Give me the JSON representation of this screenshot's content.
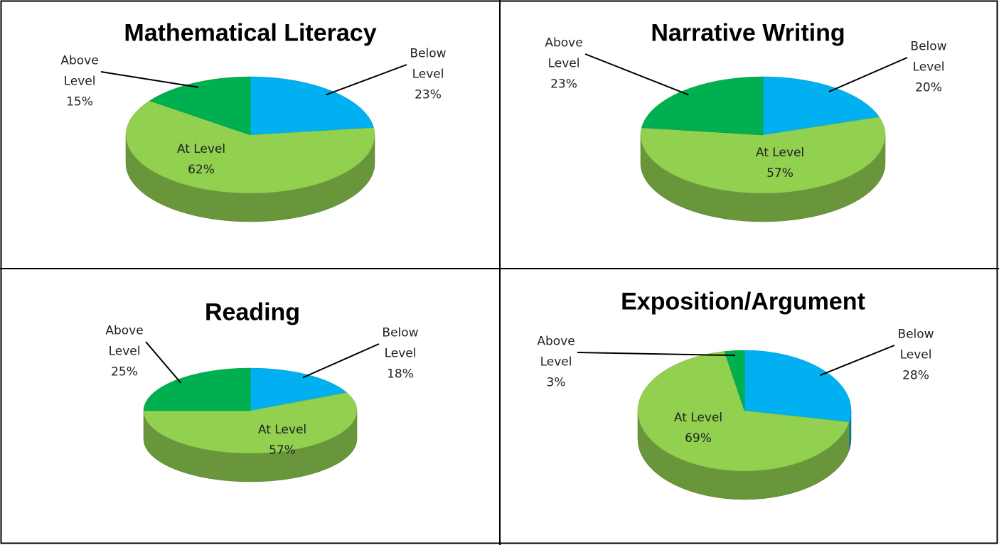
{
  "chart_data": [
    {
      "type": "pie",
      "title": "Mathematical Literacy",
      "categories": [
        "Below Level",
        "At Level",
        "Above Level"
      ],
      "values": [
        23,
        62,
        15
      ],
      "value_labels": [
        "23%",
        "62%",
        "15%"
      ],
      "colors": [
        "#00b0f0",
        "#92d050",
        "#00b050"
      ]
    },
    {
      "type": "pie",
      "title": "Narrative Writing",
      "categories": [
        "Below Level",
        "At Level",
        "Above Level"
      ],
      "values": [
        20,
        57,
        23
      ],
      "value_labels": [
        "20%",
        "57%",
        "23%"
      ],
      "colors": [
        "#00b0f0",
        "#92d050",
        "#00b050"
      ]
    },
    {
      "type": "pie",
      "title": "Reading",
      "categories": [
        "Below Level",
        "At Level",
        "Above Level"
      ],
      "values": [
        18,
        57,
        25
      ],
      "value_labels": [
        "18%",
        "57%",
        "25%"
      ],
      "colors": [
        "#00b0f0",
        "#92d050",
        "#00b050"
      ]
    },
    {
      "type": "pie",
      "title": "Exposition/Argument",
      "categories": [
        "Below Level",
        "At Level",
        "Above Level"
      ],
      "values": [
        28,
        69,
        3
      ],
      "value_labels": [
        "28%",
        "69%",
        "3%"
      ],
      "colors": [
        "#00b0f0",
        "#92d050",
        "#00b050"
      ]
    }
  ]
}
